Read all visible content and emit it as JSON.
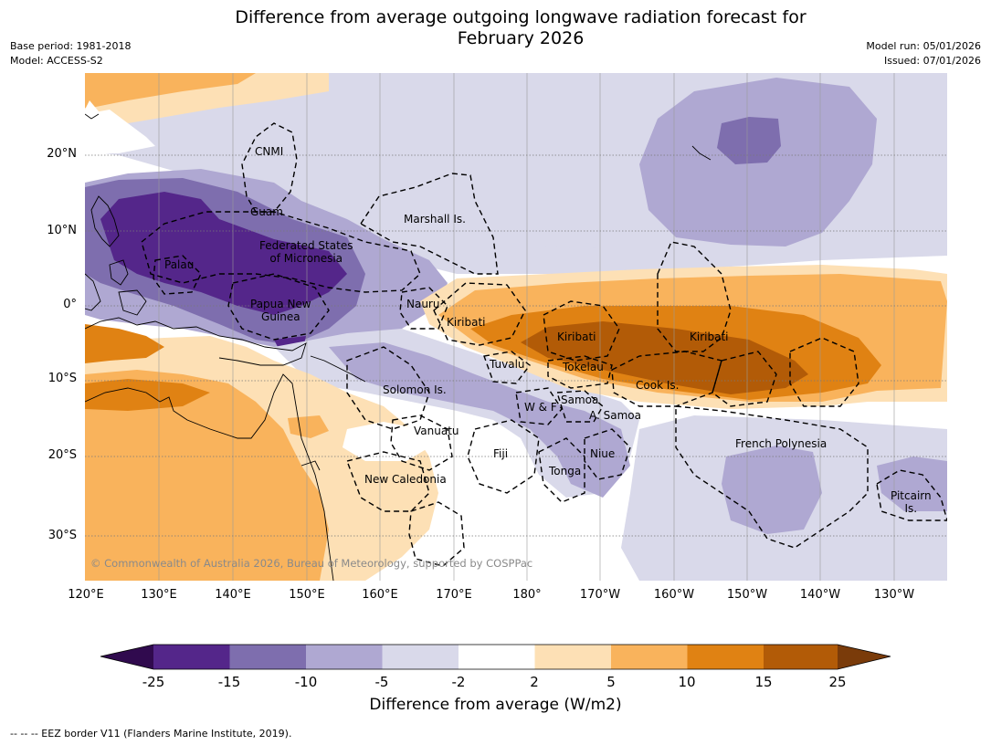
{
  "title": {
    "line1": "Difference from average outgoing longwave radiation forecast for",
    "line2": "February 2026"
  },
  "meta": {
    "base_period": "Base period: 1981-2018",
    "model": "Model: ACCESS-S2",
    "model_run": "Model run: 05/01/2026",
    "issued": "Issued: 07/01/2026"
  },
  "axes": {
    "longitudes": [
      "120°E",
      "130°E",
      "140°E",
      "150°E",
      "160°E",
      "170°E",
      "180°",
      "170°W",
      "160°W",
      "150°W",
      "140°W",
      "130°W"
    ],
    "latitudes": [
      "20°N",
      "10°N",
      "0°",
      "10°S",
      "20°S",
      "30°S"
    ]
  },
  "regions": {
    "cnmi": "CNMI",
    "guam": "Guam",
    "marshall": "Marshall Is.",
    "fsm_line1": "Federated States",
    "fsm_line2": "of Micronesia",
    "palau": "Palau",
    "nauru": "Nauru",
    "png_line1": "Papua New",
    "png_line2": "Guinea",
    "kiribati_west": "Kiribati",
    "kiribati_central": "Kiribati",
    "kiribati_east": "Kiribati",
    "tuvalu": "Tuvalu",
    "tokelau": "Tokelau",
    "cook": "Cook Is.",
    "solomon": "Solomon Is.",
    "wf": "W & F",
    "samoa": "Samoa",
    "asamoa": "A. Samoa",
    "vanuatu": "Vanuatu",
    "fiji": "Fiji",
    "niue": "Niue",
    "tonga": "Tonga",
    "french_polynesia": "French Polynesia",
    "pitcairn_line1": "Pitcairn",
    "pitcairn_line2": "Is.",
    "new_caledonia": "New Caledonia"
  },
  "copyright": "© Commonwealth of Australia 2026, Bureau of Meteorology, supported by COSPPac",
  "colorbar": {
    "ticks": [
      "-25",
      "-15",
      "-10",
      "-5",
      "-2",
      "2",
      "5",
      "10",
      "15",
      "25"
    ],
    "colors": [
      "#300a4e",
      "#54268a",
      "#7e6eae",
      "#afa8d2",
      "#d9d9ea",
      "#ffffff",
      "#fde0b5",
      "#f9b35c",
      "#e08213",
      "#b25b07",
      "#7a3b0a"
    ],
    "label": "Difference from average (W/m2)"
  },
  "footnote": "--  --  -- EEZ border V11 (Flanders Marine Institute, 2019)."
}
